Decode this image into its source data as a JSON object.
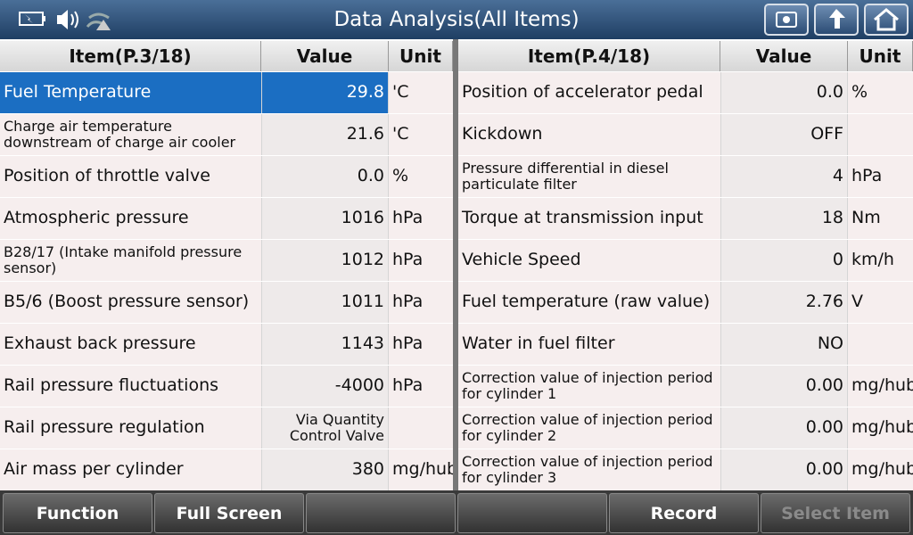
{
  "header": {
    "title": "Data Analysis(All Items)"
  },
  "tables": [
    {
      "columns": [
        "Item(P.3/18)",
        "Value",
        "Unit"
      ],
      "rows": [
        {
          "item": "Fuel Temperature",
          "value": "29.8",
          "unit": "'C",
          "selected": true
        },
        {
          "item": "Charge air temperature downstream of charge air cooler",
          "value": "21.6",
          "unit": "'C"
        },
        {
          "item": "Position of throttle valve",
          "value": "0.0",
          "unit": "%"
        },
        {
          "item": "Atmospheric pressure",
          "value": "1016",
          "unit": "hPa"
        },
        {
          "item": "B28/17 (Intake manifold pressure sensor)",
          "value": "1012",
          "unit": "hPa"
        },
        {
          "item": "B5/6 (Boost pressure sensor)",
          "value": "1011",
          "unit": "hPa"
        },
        {
          "item": "Exhaust back pressure",
          "value": "1143",
          "unit": "hPa"
        },
        {
          "item": "Rail pressure fluctuations",
          "value": "-4000",
          "unit": "hPa"
        },
        {
          "item": "Rail pressure regulation",
          "value": "Via Quantity Control Valve"
        },
        {
          "item": "Air mass per cylinder",
          "value": "380",
          "unit": "mg/hub"
        }
      ]
    },
    {
      "columns": [
        "Item(P.4/18)",
        "Value",
        "Unit"
      ],
      "rows": [
        {
          "item": "Position of accelerator pedal",
          "value": "0.0",
          "unit": "%"
        },
        {
          "item": "Kickdown",
          "value": "OFF"
        },
        {
          "item": "Pressure differential in diesel particulate filter",
          "value": "4",
          "unit": "hPa"
        },
        {
          "item": "Torque at transmission input",
          "value": "18",
          "unit": "Nm"
        },
        {
          "item": "Vehicle Speed",
          "value": "0",
          "unit": "km/h"
        },
        {
          "item": "Fuel temperature (raw value)",
          "value": "2.76",
          "unit": "V"
        },
        {
          "item": "Water in fuel filter",
          "value": "NO"
        },
        {
          "item": "Correction value of injection period for cylinder 1",
          "value": "0.00",
          "unit": "mg/hub"
        },
        {
          "item": "Correction value of injection period for cylinder 2",
          "value": "0.00",
          "unit": "mg/hub"
        },
        {
          "item": "Correction value of injection period for cylinder 3",
          "value": "0.00",
          "unit": "mg/hub"
        }
      ]
    }
  ],
  "footer": {
    "buttons": [
      "Function",
      "Full Screen",
      "Record",
      "Select Item"
    ]
  }
}
